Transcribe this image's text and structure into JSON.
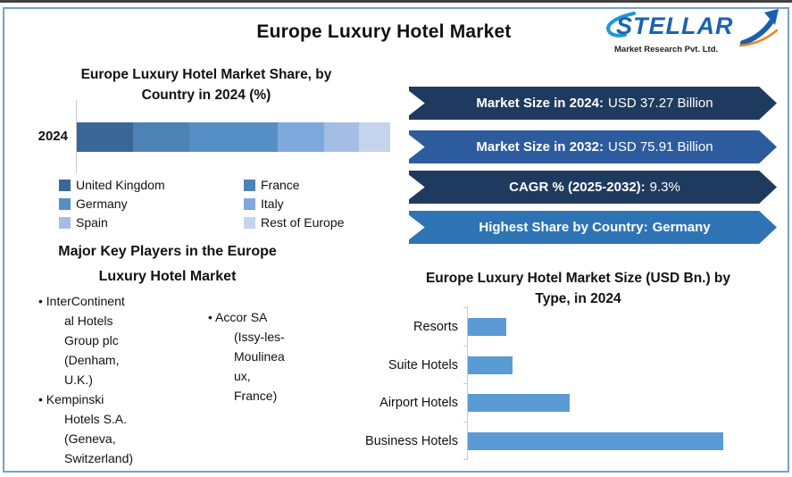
{
  "header": {
    "title": "Europe Luxury Hotel Market",
    "logo": {
      "brand": "STELLAR",
      "subtitle": "Market Research Pvt. Ltd.",
      "brand_color": "#1C63B0",
      "accent_color": "#F58220"
    }
  },
  "share_chart": {
    "title": "Europe Luxury Hotel Market Share, by\nCountry in 2024 (%)",
    "row_label": "2024"
  },
  "banners": {
    "items": [
      {
        "label": "Market Size in 2024:",
        "value": "USD 37.27 Billion",
        "color": "#1F3A5F"
      },
      {
        "label": "Market Size in 2032:",
        "value": "USD 75.91 Billion",
        "color": "#2D5C9E"
      },
      {
        "label": "CAGR % (2025-2032):",
        "value": "9.3%",
        "color": "#1F3A5F"
      },
      {
        "label": "Highest Share by Country:",
        "value": "Germany",
        "color": "#2E74B5"
      }
    ]
  },
  "key_players": {
    "title": "Major Key Players in the Europe\nLuxury Hotel Market",
    "columns": [
      {
        "items": [
          "InterContinent\nal Hotels\nGroup plc\n(Denham,\nU.K.)",
          "Kempinski\nHotels S.A.\n(Geneva,\nSwitzerland)"
        ]
      },
      {
        "items": [
          "Accor SA\n(Issy-les-\nMoulinea\nux,\nFrance)"
        ]
      }
    ]
  },
  "type_chart": {
    "title": "Europe Luxury Hotel Market Size (USD Bn.) by\nType, in 2024"
  },
  "chart_data": [
    {
      "type": "bar",
      "subtype": "stacked-horizontal",
      "title": "Europe Luxury Hotel Market Share, by Country in 2024 (%)",
      "categories": [
        "2024"
      ],
      "series": [
        {
          "name": "United Kingdom",
          "values": [
            18
          ],
          "color": "#3A6795"
        },
        {
          "name": "France",
          "values": [
            18
          ],
          "color": "#4D82B5"
        },
        {
          "name": "Germany",
          "values": [
            28
          ],
          "color": "#568FC6"
        },
        {
          "name": "Italy",
          "values": [
            15
          ],
          "color": "#7FA8DC"
        },
        {
          "name": "Spain",
          "values": [
            11
          ],
          "color": "#A4BDE3"
        },
        {
          "name": "Rest of Europe",
          "values": [
            10
          ],
          "color": "#C5D4EC"
        }
      ],
      "unit": "%",
      "xlim": [
        0,
        100
      ],
      "grid": false,
      "legend_position": "bottom",
      "values_estimated_from_pixels": true
    },
    {
      "type": "bar",
      "subtype": "horizontal",
      "title": "Europe Luxury Hotel Market Size (USD Bn.) by Type, in 2024",
      "categories": [
        "Resorts",
        "Suite Hotels",
        "Airport Hotels",
        "Business Hotels"
      ],
      "values": [
        3,
        3.5,
        8,
        20
      ],
      "unit": "USD Bn.",
      "bar_color": "#5B9BD5",
      "xlim": [
        0,
        21
      ],
      "grid": false,
      "values_estimated_from_pixels": true
    }
  ]
}
